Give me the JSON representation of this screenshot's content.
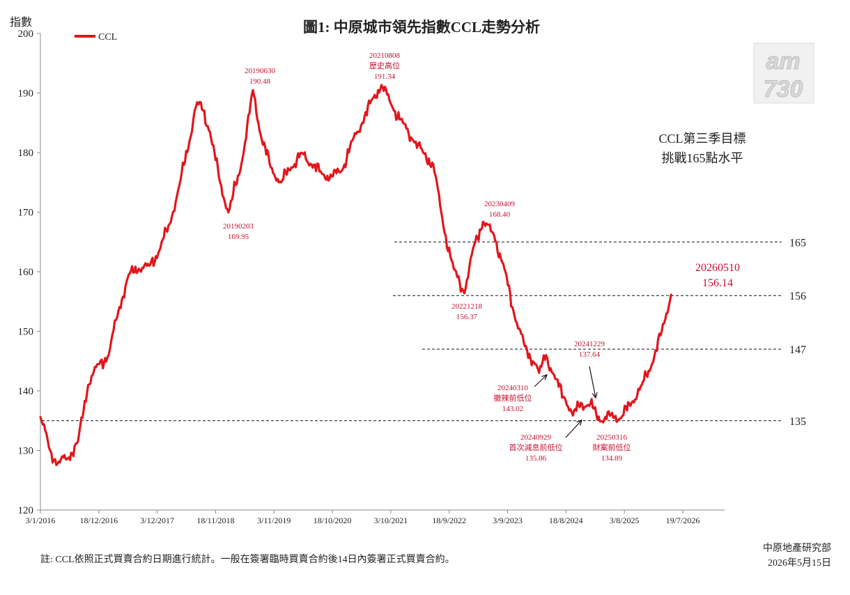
{
  "chart_data": {
    "type": "line",
    "title": "圖1: 中原城市領先指數CCL走勢分析",
    "ylabel": "指數",
    "ylim": [
      120,
      200
    ],
    "yticks": [
      "120",
      "130",
      "140",
      "150",
      "160",
      "170",
      "180",
      "190",
      "200"
    ],
    "xtick_labels": [
      "3/1/2016",
      "18/12/2016",
      "3/12/2017",
      "18/11/2018",
      "3/11/2019",
      "18/10/2020",
      "3/10/2021",
      "18/9/2022",
      "3/9/2023",
      "18/8/2024",
      "3/8/2025",
      "19/7/2026"
    ],
    "legend": {
      "position": "top-left",
      "label": "CCL"
    },
    "series": [
      {
        "name": "CCL",
        "color": "#e1161c",
        "x": [
          "2016-01-03",
          "2016-03-01",
          "2016-04-15",
          "2016-06-15",
          "2016-08-15",
          "2016-10-15",
          "2016-12-15",
          "2017-02-15",
          "2017-04-15",
          "2017-06-15",
          "2017-08-15",
          "2017-10-15",
          "2017-12-15",
          "2018-02-15",
          "2018-04-15",
          "2018-06-15",
          "2018-07-15",
          "2018-08-15",
          "2018-10-15",
          "2018-12-15",
          "2019-02-03",
          "2019-04-15",
          "2019-06-30",
          "2019-08-15",
          "2019-10-15",
          "2019-12-15",
          "2020-02-15",
          "2020-04-15",
          "2020-06-15",
          "2020-08-15",
          "2020-10-15",
          "2020-12-15",
          "2021-02-15",
          "2021-04-15",
          "2021-06-15",
          "2021-08-08",
          "2021-10-15",
          "2021-12-15",
          "2022-02-15",
          "2022-04-15",
          "2022-06-15",
          "2022-08-15",
          "2022-10-15",
          "2022-12-18",
          "2023-02-15",
          "2023-04-09",
          "2023-06-15",
          "2023-08-15",
          "2023-10-15",
          "2023-12-15",
          "2024-02-15",
          "2024-03-10",
          "2024-04-20",
          "2024-06-15",
          "2024-08-15",
          "2024-09-29",
          "2024-11-15",
          "2024-12-29",
          "2025-02-01",
          "2025-03-16",
          "2025-05-15",
          "2025-07-15",
          "2025-09-15",
          "2025-11-15",
          "2026-01-15",
          "2026-03-15",
          "2026-05-10"
        ],
        "y": [
          135.6,
          130.0,
          127.8,
          128.7,
          131.5,
          141.0,
          144.5,
          146.0,
          153.5,
          159.5,
          160.5,
          161.0,
          163.5,
          168.0,
          174.5,
          182.0,
          187.0,
          188.5,
          183.5,
          175.0,
          169.95,
          177.0,
          190.48,
          183.0,
          177.5,
          175.0,
          177.5,
          180.0,
          178.0,
          176.5,
          176.0,
          177.0,
          182.0,
          185.0,
          189.0,
          191.34,
          187.5,
          185.0,
          182.0,
          180.0,
          178.0,
          167.5,
          160.5,
          156.37,
          164.5,
          168.4,
          166.0,
          160.5,
          152.5,
          147.5,
          144.5,
          143.02,
          146.0,
          142.0,
          138.5,
          135.86,
          138.0,
          137.64,
          137.0,
          134.89,
          136.0,
          135.5,
          138.0,
          141.0,
          144.5,
          150.0,
          156.14
        ]
      }
    ],
    "reference_lines": [
      {
        "value": 165,
        "label": "165"
      },
      {
        "value": 156,
        "label": "156"
      },
      {
        "value": 147,
        "label": "147"
      },
      {
        "value": 135,
        "label": "135"
      }
    ],
    "annotations": [
      {
        "id": "a20190630",
        "date": "2019-06-30",
        "lines": [
          "20190630",
          "190.48"
        ]
      },
      {
        "id": "a20210808",
        "date": "2021-08-08",
        "lines": [
          "20210808",
          "歷史高位",
          "191.34"
        ]
      },
      {
        "id": "a20190203",
        "date": "2019-02-03",
        "lines": [
          "20190203",
          "169.95"
        ]
      },
      {
        "id": "a20230409",
        "date": "2023-04-09",
        "lines": [
          "20230409",
          "168.40"
        ]
      },
      {
        "id": "a20221218",
        "date": "2022-12-18",
        "lines": [
          "20221218",
          "156.37"
        ]
      },
      {
        "id": "a20240310",
        "date": "2024-03-10",
        "lines": [
          "20240310",
          "撤辣前低位",
          "143.02"
        ]
      },
      {
        "id": "a20241229",
        "date": "2024-12-29",
        "lines": [
          "20241229",
          "137.64"
        ]
      },
      {
        "id": "a20240929",
        "date": "2024-09-29",
        "lines": [
          "20240929",
          "首次減息前低位",
          "135.86"
        ]
      },
      {
        "id": "a20250316",
        "date": "2025-03-16",
        "lines": [
          "20250316",
          "財案前低位",
          "134.89"
        ]
      },
      {
        "id": "a20260510",
        "date": "2026-05-10",
        "lines": [
          "20260510",
          "156.14"
        ]
      }
    ],
    "target_note": [
      "CCL第三季目標",
      "挑戰165點水平"
    ],
    "footnote": "註: CCL依照正式買賣合約日期進行統計。一般在簽署臨時買賣合約後14日內簽署正式買賣合約。",
    "source": [
      "中原地產研究部",
      "2026年5月15日"
    ],
    "logo_text": [
      "am",
      "730"
    ],
    "colors": {
      "line": "#e1161c",
      "annotation": "#c8102e",
      "axis": "#888888",
      "text": "#222222",
      "logo": "#d9d9d9"
    }
  }
}
